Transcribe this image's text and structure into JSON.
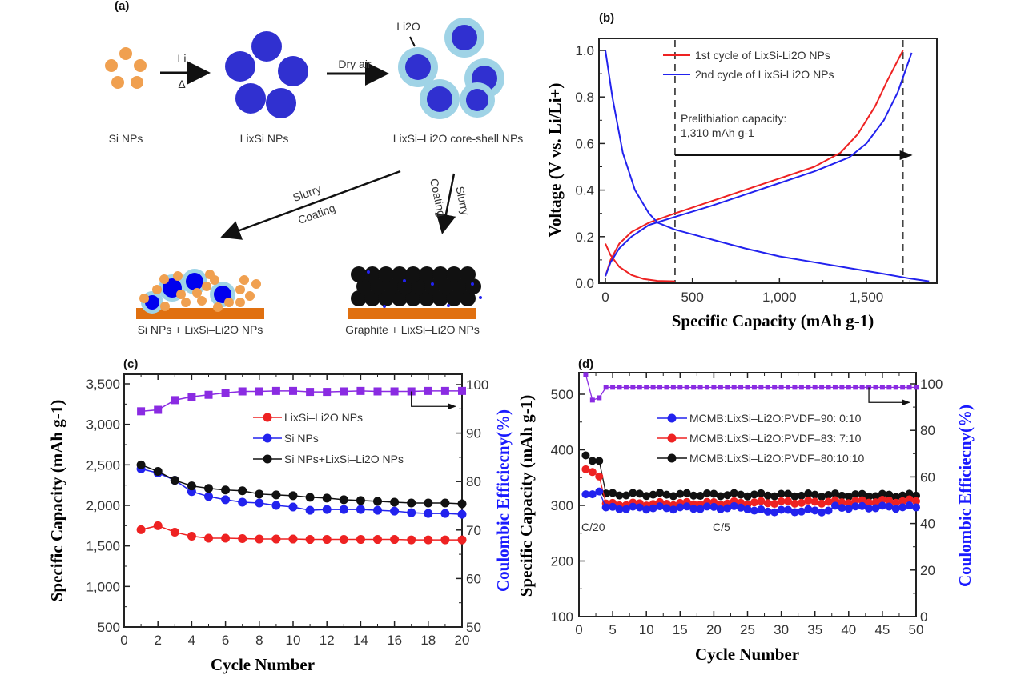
{
  "colors": {
    "red": "#ee2222",
    "blue": "#2222ee",
    "black": "#111111",
    "purple": "#8a2be2",
    "orange": "#f0a050",
    "core": "#3a3acc",
    "shell": "#9fd3e6",
    "substrate": "#e07010",
    "axis_blue": "#1a1aff"
  },
  "panel_a": {
    "label": "(a)",
    "si_nps": "Si NPs",
    "lixsi_nps": "LixSi NPs",
    "core_shell": "LixSi–Li2O core-shell NPs",
    "li2o_label": "Li2O",
    "arrow1_top": "Li",
    "arrow1_bottom": "Δ",
    "arrow2_top": "Dry air",
    "slurry_left_1": "Slurry",
    "slurry_left_2": "Coating",
    "slurry_right_1": "Slurry",
    "slurry_right_2": "Coating",
    "electrode_left": "Si NPs + LixSi–Li2O NPs",
    "electrode_right": "Graphite + LixSi–Li2O NPs"
  },
  "chart_data": [
    {
      "id": "b",
      "panel_label": "(b)",
      "type": "line",
      "xlabel": "Specific Capacity (mAh g-1)",
      "ylabel": "Voltage (V vs. Li/Li+)",
      "xlim": [
        -70,
        1900
      ],
      "ylim": [
        0,
        1.05
      ],
      "xticks": [
        0,
        500,
        1000,
        1500
      ],
      "xtick_labels": [
        "0",
        "500",
        "1,000",
        "1,500"
      ],
      "yticks": [
        0.0,
        0.2,
        0.4,
        0.6,
        0.8,
        1.0
      ],
      "ytick_labels": [
        "0.0",
        "0.2",
        "0.4",
        "0.6",
        "0.8",
        "1.0"
      ],
      "legend": [
        "1st cycle of LixSi-Li2O NPs",
        "2nd cycle of LixSi-Li2O NPs"
      ],
      "legend_position": "top-center",
      "annotation": [
        "Prelithiation capacity:",
        "1,310 mAh g-1"
      ],
      "dashed_lines_x": [
        400,
        1710
      ],
      "arrow": {
        "x_from": 400,
        "x_to": 1710,
        "y": 0.55
      },
      "series": [
        {
          "name": "1st cycle discharge",
          "color": "red",
          "x": [
            0,
            30,
            80,
            150,
            220,
            300,
            400
          ],
          "y": [
            0.17,
            0.12,
            0.07,
            0.035,
            0.018,
            0.01,
            0.008
          ]
        },
        {
          "name": "1st cycle charge",
          "color": "red",
          "x": [
            0,
            30,
            80,
            150,
            250,
            400,
            600,
            800,
            1000,
            1200,
            1350,
            1450,
            1550,
            1620,
            1710
          ],
          "y": [
            0.03,
            0.1,
            0.17,
            0.22,
            0.26,
            0.3,
            0.35,
            0.4,
            0.45,
            0.5,
            0.56,
            0.64,
            0.76,
            0.87,
            1.0
          ]
        },
        {
          "name": "2nd cycle discharge",
          "color": "blue",
          "x": [
            0,
            40,
            100,
            170,
            250,
            300,
            400,
            600,
            800,
            1000,
            1200,
            1400,
            1600,
            1750,
            1860
          ],
          "y": [
            1.0,
            0.8,
            0.56,
            0.4,
            0.3,
            0.26,
            0.23,
            0.19,
            0.15,
            0.115,
            0.09,
            0.065,
            0.04,
            0.02,
            0.008
          ]
        },
        {
          "name": "2nd cycle charge",
          "color": "blue",
          "x": [
            0,
            30,
            80,
            150,
            250,
            400,
            600,
            800,
            1000,
            1200,
            1400,
            1500,
            1600,
            1680,
            1760
          ],
          "y": [
            0.03,
            0.09,
            0.15,
            0.2,
            0.25,
            0.285,
            0.33,
            0.38,
            0.43,
            0.48,
            0.54,
            0.6,
            0.7,
            0.82,
            0.99
          ]
        }
      ]
    },
    {
      "id": "c",
      "panel_label": "(c)",
      "type": "line",
      "xlabel": "Cycle Number",
      "ylabel": "Specific Capacity (mAh g-1)",
      "y2label": "Coulombic Efficiecny(%)",
      "xlim": [
        0,
        20
      ],
      "ylim": [
        500,
        3600
      ],
      "y2lim": [
        50,
        103
      ],
      "xticks": [
        0,
        2,
        4,
        6,
        8,
        10,
        12,
        14,
        16,
        18,
        20
      ],
      "yticks": [
        500,
        1000,
        1500,
        2000,
        2500,
        3000,
        3500
      ],
      "ytick_labels": [
        "500",
        "1,000",
        "1,500",
        "2,000",
        "2,500",
        "3,000",
        "3,500"
      ],
      "y2ticks": [
        50,
        60,
        70,
        80,
        90,
        100
      ],
      "legend": [
        "LixSi–Li2O NPs",
        "Si NPs",
        "Si NPs+LixSi–Li2O NPs"
      ],
      "legend_position": "center",
      "x": [
        1,
        2,
        3,
        4,
        5,
        6,
        7,
        8,
        9,
        10,
        11,
        12,
        13,
        14,
        15,
        16,
        17,
        18,
        19,
        20
      ],
      "series": [
        {
          "name": "LixSi–Li2O NPs",
          "color": "red",
          "marker": "circle",
          "values": [
            1700,
            1750,
            1670,
            1620,
            1595,
            1595,
            1590,
            1585,
            1585,
            1585,
            1580,
            1580,
            1580,
            1580,
            1580,
            1580,
            1575,
            1575,
            1575,
            1575
          ]
        },
        {
          "name": "Si NPs",
          "color": "blue",
          "marker": "circle",
          "values": [
            2450,
            2400,
            2310,
            2170,
            2110,
            2070,
            2040,
            2030,
            2000,
            1980,
            1940,
            1950,
            1950,
            1950,
            1940,
            1930,
            1910,
            1900,
            1900,
            1890
          ]
        },
        {
          "name": "Si NPs+LixSi–Li2O NPs",
          "color": "black",
          "marker": "circle",
          "values": [
            2500,
            2420,
            2310,
            2240,
            2210,
            2190,
            2180,
            2140,
            2130,
            2120,
            2100,
            2090,
            2070,
            2060,
            2050,
            2040,
            2030,
            2030,
            2030,
            2020
          ]
        },
        {
          "name": "Coulombic efficiency",
          "color": "purple",
          "marker": "square",
          "axis": "y2",
          "values": [
            94.5,
            94.8,
            96.8,
            97.5,
            97.9,
            98.3,
            98.6,
            98.6,
            98.7,
            98.7,
            98.5,
            98.5,
            98.6,
            98.7,
            98.6,
            98.6,
            98.6,
            98.7,
            98.7,
            98.7
          ]
        }
      ],
      "arrow": {
        "from_x": 17,
        "to_axis": "right"
      }
    },
    {
      "id": "d",
      "panel_label": "(d)",
      "type": "line",
      "xlabel": "Cycle Number",
      "ylabel": "Specific Capacity (mAh g-1)",
      "y2label": "Coulombic Efficiecny(%)",
      "xlim": [
        0,
        50
      ],
      "ylim": [
        100,
        535
      ],
      "y2lim": [
        0,
        105
      ],
      "xticks": [
        0,
        5,
        10,
        15,
        20,
        25,
        30,
        35,
        40,
        45,
        50
      ],
      "yticks": [
        100,
        200,
        300,
        400,
        500
      ],
      "y2ticks": [
        0,
        20,
        40,
        60,
        80,
        100
      ],
      "legend": [
        "MCMB:LixSi–Li2O:PVDF=90: 0:10",
        "MCMB:LixSi–Li2O:PVDF=83: 7:10",
        "MCMB:LixSi–Li2O:PVDF=80:10:10"
      ],
      "legend_position": "center-right",
      "annotations": [
        "C/20",
        "C/5"
      ],
      "series": [
        {
          "name": "MCMB:LixSi–Li2O:PVDF=90: 0:10",
          "color": "blue",
          "marker": "circle",
          "first_cycles": [
            320,
            320,
            325
          ],
          "steady_start": 295,
          "steady_end": 297
        },
        {
          "name": "MCMB:LixSi–Li2O:PVDF=83: 7:10",
          "color": "red",
          "marker": "circle",
          "first_cycles": [
            365,
            360,
            352
          ],
          "steady_start": 302,
          "steady_end": 308
        },
        {
          "name": "MCMB:LixSi–Li2O:PVDF=80:10:10",
          "color": "black",
          "marker": "circle",
          "first_cycles": [
            390,
            380,
            380
          ],
          "steady_start": 320,
          "steady_end": 318
        },
        {
          "name": "Coulombic efficiency",
          "color": "purple",
          "marker": "square",
          "axis": "y2",
          "first_cycles": [
            107,
            93,
            94
          ],
          "steady": 98.5
        }
      ],
      "arrow": {
        "from_x": 43,
        "to_axis": "right"
      }
    }
  ]
}
